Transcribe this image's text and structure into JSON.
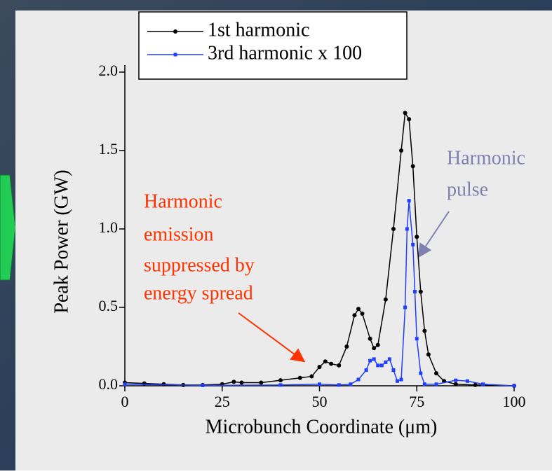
{
  "chart_data": {
    "type": "line",
    "xlabel": "Microbunch Coordinate (μm)",
    "ylabel": "Peak Power (GW)",
    "xlim": [
      0,
      100
    ],
    "ylim": [
      0,
      2.0
    ],
    "xticks": [
      0,
      25,
      50,
      75,
      100
    ],
    "yticks": [
      {
        "value": 0,
        "label": "0.0"
      },
      {
        "value": 0.5,
        "label": "0.5"
      },
      {
        "value": 1.0,
        "label": "1.0"
      },
      {
        "value": 1.5,
        "label": "1.5"
      },
      {
        "value": 2.0,
        "label": "2.0"
      }
    ],
    "legend": "top-left",
    "series": [
      {
        "name": "1st harmonic",
        "color": "#000000",
        "marker": "circle",
        "x": [
          0,
          5,
          10,
          15,
          20,
          25,
          28,
          30,
          35,
          40,
          45,
          48,
          50,
          51.5,
          53,
          55,
          57,
          59,
          60,
          61,
          63,
          64,
          65,
          67,
          69,
          71,
          72,
          73,
          74,
          75,
          76,
          77,
          78,
          80,
          82,
          85,
          90,
          100
        ],
        "values": [
          0.02,
          0.015,
          0.01,
          0.005,
          0.005,
          0.01,
          0.025,
          0.02,
          0.02,
          0.035,
          0.05,
          0.06,
          0.12,
          0.155,
          0.14,
          0.13,
          0.25,
          0.45,
          0.49,
          0.46,
          0.3,
          0.24,
          0.26,
          0.55,
          1.0,
          1.5,
          1.74,
          1.7,
          1.4,
          0.95,
          0.6,
          0.35,
          0.2,
          0.08,
          0.03,
          0.01,
          0.005,
          0
        ]
      },
      {
        "name": "3rd harmonic x 100",
        "color": "#1f3fff",
        "marker": "square",
        "x": [
          0,
          20,
          40,
          50,
          55,
          58,
          60,
          62,
          63,
          64,
          65,
          66,
          67,
          68,
          69,
          70,
          71,
          72,
          72.5,
          73,
          74,
          74.5,
          75,
          76,
          77,
          80,
          85,
          88,
          92,
          100
        ],
        "values": [
          0.01,
          0.003,
          0.005,
          0.01,
          0.005,
          0.01,
          0.04,
          0.1,
          0.16,
          0.17,
          0.13,
          0.13,
          0.15,
          0.17,
          0.1,
          0.03,
          0.04,
          0.5,
          1.0,
          1.18,
          0.9,
          0.6,
          0.3,
          0.08,
          0.01,
          0.01,
          0.035,
          0.03,
          0.01,
          0
        ]
      }
    ],
    "annotations": [
      {
        "lines": [
          "Harmonic",
          "emission",
          "suppressed by",
          "energy spread"
        ],
        "color": "#ff3300"
      },
      {
        "lines": [
          "Harmonic",
          "pulse"
        ],
        "color": "#7f7fb0"
      }
    ]
  }
}
